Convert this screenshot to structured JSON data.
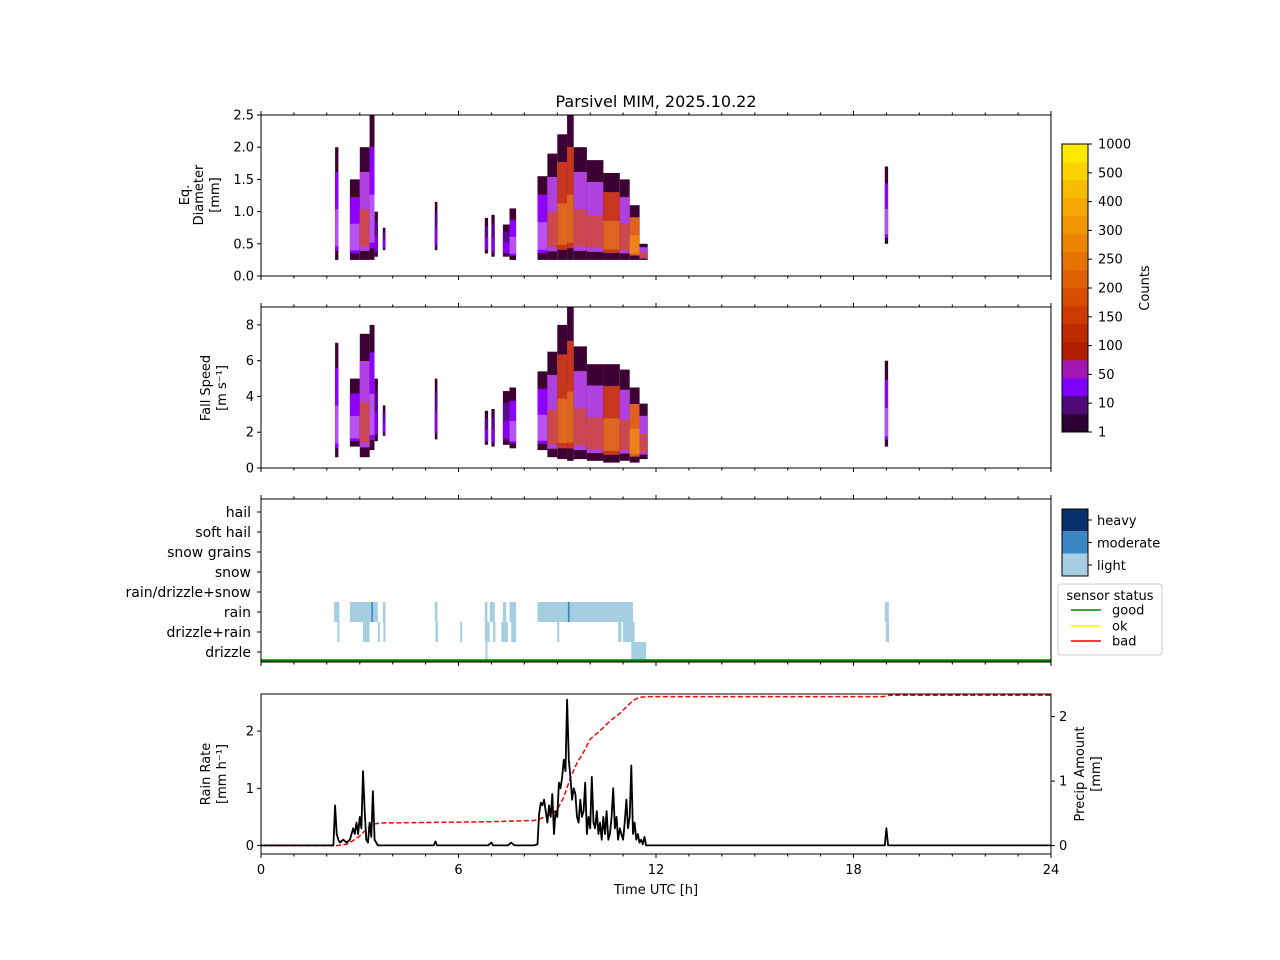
{
  "title": "Parsivel MIM, 2025.10.22",
  "xaxis": {
    "label": "Time UTC [h]",
    "range": [
      0,
      24
    ],
    "ticks": [
      0,
      6,
      12,
      18,
      24
    ],
    "tick_labels": [
      "0",
      "6",
      "12",
      "18",
      "24"
    ]
  },
  "colors": {
    "rain_rate": "#000000",
    "precip_amount": "#ff0000",
    "light": "#a6cee3",
    "moderate": "#3a87c4",
    "heavy": "#08306b",
    "good": "#008000",
    "ok": "#ffff00",
    "bad": "#ff0000"
  },
  "chart_data": [
    {
      "type": "heatmap",
      "name": "diameter",
      "ylabel_lines": [
        "Eq.",
        "Diameter",
        "[mm]"
      ],
      "ylim": [
        0,
        2.5
      ],
      "yticks": [
        0.0,
        0.5,
        1.0,
        1.5,
        2.0,
        2.5
      ],
      "ytick_labels": [
        "0.0",
        "0.5",
        "1.0",
        "1.5",
        "2.0",
        "2.5"
      ],
      "columns": [
        {
          "t0": 2.25,
          "t1": 2.35,
          "lo": 0.25,
          "hi": 2.0,
          "lvl": 1
        },
        {
          "t0": 2.7,
          "t1": 3.0,
          "lo": 0.25,
          "hi": 1.5,
          "lvl": 1
        },
        {
          "t0": 3.0,
          "t1": 3.3,
          "lo": 0.25,
          "hi": 2.0,
          "lvl": 2
        },
        {
          "t0": 3.3,
          "t1": 3.45,
          "lo": 0.25,
          "hi": 2.5,
          "lvl": 1
        },
        {
          "t0": 3.45,
          "t1": 3.55,
          "lo": 0.3,
          "hi": 1.0,
          "lvl": 0
        },
        {
          "t0": 3.7,
          "t1": 3.78,
          "lo": 0.4,
          "hi": 0.75,
          "lvl": 0
        },
        {
          "t0": 5.28,
          "t1": 5.36,
          "lo": 0.4,
          "hi": 1.15,
          "lvl": 0
        },
        {
          "t0": 6.8,
          "t1": 6.9,
          "lo": 0.35,
          "hi": 0.9,
          "lvl": 0
        },
        {
          "t0": 7.0,
          "t1": 7.1,
          "lo": 0.3,
          "hi": 0.95,
          "lvl": 0
        },
        {
          "t0": 7.35,
          "t1": 7.55,
          "lo": 0.3,
          "hi": 0.8,
          "lvl": 0
        },
        {
          "t0": 7.55,
          "t1": 7.75,
          "lo": 0.25,
          "hi": 1.05,
          "lvl": 1
        },
        {
          "t0": 8.4,
          "t1": 8.7,
          "lo": 0.25,
          "hi": 1.55,
          "lvl": 1
        },
        {
          "t0": 8.7,
          "t1": 9.0,
          "lo": 0.25,
          "hi": 1.9,
          "lvl": 2
        },
        {
          "t0": 9.0,
          "t1": 9.3,
          "lo": 0.25,
          "hi": 2.2,
          "lvl": 3
        },
        {
          "t0": 9.3,
          "t1": 9.5,
          "lo": 0.25,
          "hi": 2.5,
          "lvl": 3
        },
        {
          "t0": 9.5,
          "t1": 9.9,
          "lo": 0.25,
          "hi": 2.0,
          "lvl": 2
        },
        {
          "t0": 9.9,
          "t1": 10.4,
          "lo": 0.25,
          "hi": 1.8,
          "lvl": 2
        },
        {
          "t0": 10.4,
          "t1": 10.9,
          "lo": 0.25,
          "hi": 1.6,
          "lvl": 3
        },
        {
          "t0": 10.9,
          "t1": 11.2,
          "lo": 0.25,
          "hi": 1.5,
          "lvl": 2
        },
        {
          "t0": 11.2,
          "t1": 11.5,
          "lo": 0.25,
          "hi": 1.1,
          "lvl": 4
        },
        {
          "t0": 11.5,
          "t1": 11.75,
          "lo": 0.25,
          "hi": 0.5,
          "lvl": 2
        },
        {
          "t0": 18.95,
          "t1": 19.05,
          "lo": 0.5,
          "hi": 1.7,
          "lvl": 1
        }
      ]
    },
    {
      "type": "heatmap",
      "name": "fall_speed",
      "ylabel_lines": [
        "Fall Speed",
        "[m s⁻¹]"
      ],
      "ylim": [
        0,
        9
      ],
      "yticks": [
        0,
        2,
        4,
        6,
        8
      ],
      "ytick_labels": [
        "0",
        "2",
        "4",
        "6",
        "8"
      ],
      "columns": [
        {
          "t0": 2.25,
          "t1": 2.35,
          "lo": 0.6,
          "hi": 7.0,
          "lvl": 1
        },
        {
          "t0": 2.7,
          "t1": 3.0,
          "lo": 1.2,
          "hi": 5.0,
          "lvl": 1
        },
        {
          "t0": 3.0,
          "t1": 3.3,
          "lo": 0.6,
          "hi": 7.5,
          "lvl": 2
        },
        {
          "t0": 3.3,
          "t1": 3.45,
          "lo": 1.0,
          "hi": 8.0,
          "lvl": 1
        },
        {
          "t0": 3.45,
          "t1": 3.55,
          "lo": 1.5,
          "hi": 5.0,
          "lvl": 0
        },
        {
          "t0": 3.7,
          "t1": 3.78,
          "lo": 1.8,
          "hi": 3.5,
          "lvl": 0
        },
        {
          "t0": 5.28,
          "t1": 5.36,
          "lo": 1.6,
          "hi": 5.0,
          "lvl": 0
        },
        {
          "t0": 6.8,
          "t1": 6.9,
          "lo": 1.3,
          "hi": 3.2,
          "lvl": 0
        },
        {
          "t0": 7.0,
          "t1": 7.1,
          "lo": 1.2,
          "hi": 3.3,
          "lvl": 0
        },
        {
          "t0": 7.35,
          "t1": 7.55,
          "lo": 1.3,
          "hi": 4.3,
          "lvl": 0
        },
        {
          "t0": 7.55,
          "t1": 7.75,
          "lo": 1.1,
          "hi": 4.5,
          "lvl": 1
        },
        {
          "t0": 8.4,
          "t1": 8.7,
          "lo": 1.0,
          "hi": 5.4,
          "lvl": 1
        },
        {
          "t0": 8.7,
          "t1": 9.0,
          "lo": 0.6,
          "hi": 6.5,
          "lvl": 2
        },
        {
          "t0": 9.0,
          "t1": 9.3,
          "lo": 0.5,
          "hi": 8.0,
          "lvl": 3
        },
        {
          "t0": 9.3,
          "t1": 9.5,
          "lo": 0.4,
          "hi": 9.0,
          "lvl": 3
        },
        {
          "t0": 9.5,
          "t1": 9.9,
          "lo": 0.5,
          "hi": 6.8,
          "lvl": 2
        },
        {
          "t0": 9.9,
          "t1": 10.4,
          "lo": 0.4,
          "hi": 5.8,
          "lvl": 2
        },
        {
          "t0": 10.4,
          "t1": 10.9,
          "lo": 0.3,
          "hi": 5.8,
          "lvl": 3
        },
        {
          "t0": 10.9,
          "t1": 11.2,
          "lo": 0.4,
          "hi": 5.5,
          "lvl": 2
        },
        {
          "t0": 11.2,
          "t1": 11.5,
          "lo": 0.3,
          "hi": 4.5,
          "lvl": 4
        },
        {
          "t0": 11.5,
          "t1": 11.75,
          "lo": 0.5,
          "hi": 3.6,
          "lvl": 2
        },
        {
          "t0": 18.95,
          "t1": 19.05,
          "lo": 1.2,
          "hi": 6.0,
          "lvl": 1
        }
      ]
    },
    {
      "type": "categorical-timeline",
      "name": "precip_type",
      "categories": [
        "drizzle",
        "drizzle+rain",
        "rain",
        "rain/drizzle+snow",
        "snow",
        "snow grains",
        "soft hail",
        "hail"
      ],
      "segments": [
        {
          "cat": 2,
          "t0": 2.22,
          "t1": 2.38,
          "int": 0
        },
        {
          "cat": 2,
          "t0": 2.7,
          "t1": 3.35,
          "int": 0
        },
        {
          "cat": 2,
          "t0": 3.35,
          "t1": 3.4,
          "int": 1
        },
        {
          "cat": 2,
          "t0": 3.4,
          "t1": 3.55,
          "int": 0
        },
        {
          "cat": 2,
          "t0": 3.7,
          "t1": 3.78,
          "int": 0
        },
        {
          "cat": 2,
          "t0": 5.28,
          "t1": 5.36,
          "int": 0
        },
        {
          "cat": 2,
          "t0": 6.8,
          "t1": 6.88,
          "int": 0
        },
        {
          "cat": 2,
          "t0": 6.95,
          "t1": 7.1,
          "int": 0
        },
        {
          "cat": 2,
          "t0": 7.35,
          "t1": 7.45,
          "int": 0
        },
        {
          "cat": 2,
          "t0": 7.55,
          "t1": 7.75,
          "int": 0
        },
        {
          "cat": 2,
          "t0": 8.4,
          "t1": 9.32,
          "int": 0
        },
        {
          "cat": 2,
          "t0": 9.32,
          "t1": 9.38,
          "int": 1
        },
        {
          "cat": 2,
          "t0": 9.38,
          "t1": 11.3,
          "int": 0
        },
        {
          "cat": 2,
          "t0": 18.95,
          "t1": 19.07,
          "int": 0
        },
        {
          "cat": 1,
          "t0": 2.32,
          "t1": 2.36,
          "int": 0
        },
        {
          "cat": 1,
          "t0": 3.1,
          "t1": 3.3,
          "int": 0
        },
        {
          "cat": 1,
          "t0": 3.55,
          "t1": 3.6,
          "int": 0
        },
        {
          "cat": 1,
          "t0": 3.72,
          "t1": 3.78,
          "int": 0
        },
        {
          "cat": 1,
          "t0": 5.3,
          "t1": 5.38,
          "int": 0
        },
        {
          "cat": 1,
          "t0": 6.05,
          "t1": 6.08,
          "int": 0
        },
        {
          "cat": 1,
          "t0": 6.8,
          "t1": 6.95,
          "int": 0
        },
        {
          "cat": 1,
          "t0": 7.05,
          "t1": 7.12,
          "int": 0
        },
        {
          "cat": 1,
          "t0": 7.3,
          "t1": 7.5,
          "int": 0
        },
        {
          "cat": 1,
          "t0": 7.6,
          "t1": 7.75,
          "int": 0
        },
        {
          "cat": 1,
          "t0": 9.0,
          "t1": 9.05,
          "int": 0
        },
        {
          "cat": 1,
          "t0": 10.85,
          "t1": 10.95,
          "int": 0
        },
        {
          "cat": 1,
          "t0": 11.0,
          "t1": 11.35,
          "int": 0
        },
        {
          "cat": 1,
          "t0": 18.98,
          "t1": 19.08,
          "int": 0
        },
        {
          "cat": 0,
          "t0": 6.82,
          "t1": 6.88,
          "int": 0
        },
        {
          "cat": 0,
          "t0": 11.25,
          "t1": 11.7,
          "int": 0
        }
      ],
      "intensity_legend": [
        "light",
        "moderate",
        "heavy"
      ],
      "sensor_status": {
        "title": "sensor status",
        "entries": [
          "good",
          "ok",
          "bad"
        ],
        "value": "good"
      }
    },
    {
      "type": "line",
      "name": "rain_rate",
      "ylabel_lines": [
        "Rain Rate",
        "[mm h⁻¹]"
      ],
      "ylim": [
        -0.15,
        2.65
      ],
      "yticks": [
        0,
        1,
        2
      ],
      "ytick_labels": [
        "0",
        "1",
        "2"
      ],
      "x": [
        0,
        2.2,
        2.25,
        2.3,
        2.35,
        2.4,
        2.5,
        2.6,
        2.7,
        2.8,
        2.85,
        2.9,
        2.95,
        3.0,
        3.05,
        3.1,
        3.15,
        3.2,
        3.25,
        3.3,
        3.35,
        3.4,
        3.45,
        3.5,
        3.55,
        3.6,
        5.25,
        5.3,
        5.35,
        5.4,
        6.9,
        7.0,
        7.05,
        7.1,
        7.5,
        7.6,
        7.7,
        7.8,
        8.3,
        8.4,
        8.45,
        8.5,
        8.55,
        8.6,
        8.65,
        8.7,
        8.75,
        8.8,
        8.85,
        8.9,
        8.95,
        9.0,
        9.05,
        9.1,
        9.15,
        9.2,
        9.25,
        9.3,
        9.35,
        9.4,
        9.45,
        9.5,
        9.55,
        9.6,
        9.65,
        9.7,
        9.75,
        9.8,
        9.85,
        9.9,
        9.95,
        10.0,
        10.05,
        10.1,
        10.15,
        10.2,
        10.25,
        10.3,
        10.35,
        10.4,
        10.45,
        10.5,
        10.55,
        10.6,
        10.65,
        10.7,
        10.75,
        10.8,
        10.85,
        10.9,
        10.95,
        11.0,
        11.05,
        11.1,
        11.15,
        11.2,
        11.25,
        11.3,
        11.35,
        11.4,
        11.45,
        11.5,
        11.55,
        11.6,
        11.65,
        11.7,
        11.8,
        18.9,
        18.95,
        19.0,
        19.05,
        19.1,
        24
      ],
      "values": [
        0,
        0,
        0.7,
        0.2,
        0.1,
        0.05,
        0.1,
        0.05,
        0.1,
        0.3,
        0.2,
        0.4,
        0.2,
        0.5,
        0.3,
        1.3,
        0.6,
        0.1,
        0.05,
        0.4,
        0.15,
        0.95,
        0.1,
        0.05,
        0,
        0,
        0,
        0.07,
        0,
        0,
        0,
        0.05,
        0,
        0,
        0,
        0.05,
        0,
        0,
        0,
        0.02,
        0.55,
        0.75,
        0.7,
        0.8,
        0.6,
        0.4,
        0.7,
        0.5,
        0.9,
        0.2,
        0.6,
        0.5,
        1.1,
        1.0,
        1.2,
        1.5,
        1.3,
        2.55,
        1.5,
        1.2,
        0.8,
        1.0,
        0.9,
        0.5,
        0.4,
        0.8,
        0.5,
        0.6,
        1.1,
        0.2,
        0.5,
        0.3,
        1.2,
        0.4,
        0.3,
        0.6,
        0.2,
        0.4,
        0.1,
        0.5,
        0.2,
        0.6,
        0.1,
        0.2,
        0.5,
        1.0,
        0.3,
        0.5,
        0.1,
        0.3,
        0.2,
        0.1,
        0.4,
        0.8,
        0.3,
        0.5,
        1.4,
        0.2,
        0.4,
        0.1,
        0.2,
        0.05,
        0.1,
        0.02,
        0.15,
        0,
        0,
        0,
        0,
        0.3,
        0,
        0,
        0
      ]
    },
    {
      "type": "line",
      "name": "precip_amount",
      "ylabel_lines": [
        "Precip Amount",
        "[mm]"
      ],
      "ylim": [
        -0.13,
        2.35
      ],
      "yticks": [
        0,
        1,
        2
      ],
      "ytick_labels": [
        "0",
        "1",
        "2"
      ],
      "x": [
        0,
        2.3,
        2.6,
        2.8,
        3.0,
        3.2,
        3.4,
        3.6,
        5.3,
        7.0,
        7.6,
        8.3,
        8.5,
        8.8,
        9.0,
        9.2,
        9.4,
        9.6,
        9.8,
        10.0,
        10.3,
        10.6,
        10.9,
        11.1,
        11.3,
        11.5,
        11.8,
        12.5,
        18.9,
        19.1,
        24
      ],
      "values": [
        0,
        0,
        0.02,
        0.08,
        0.15,
        0.25,
        0.33,
        0.35,
        0.36,
        0.37,
        0.38,
        0.39,
        0.42,
        0.48,
        0.56,
        0.75,
        1.05,
        1.28,
        1.45,
        1.65,
        1.78,
        1.93,
        2.05,
        2.15,
        2.25,
        2.3,
        2.31,
        2.31,
        2.31,
        2.33,
        2.33
      ]
    }
  ],
  "colorbar": {
    "label": "Counts",
    "tick_labels": [
      "1",
      "10",
      "50",
      "100",
      "150",
      "200",
      "250",
      "300",
      "400",
      "500",
      "1000"
    ]
  }
}
